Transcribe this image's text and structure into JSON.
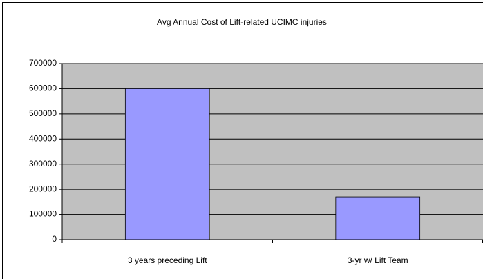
{
  "chart_data": {
    "type": "bar",
    "title": "Avg Annual Cost of Lift-related UCIMC injuries",
    "categories": [
      "3 years preceding Lift",
      "3-yr w/ Lift Team"
    ],
    "values": [
      600000,
      170000
    ],
    "color": "#9999ff",
    "ylim": [
      0,
      700000
    ],
    "yticks": [
      0,
      100000,
      200000,
      300000,
      400000,
      500000,
      600000,
      700000
    ],
    "grid": true
  }
}
